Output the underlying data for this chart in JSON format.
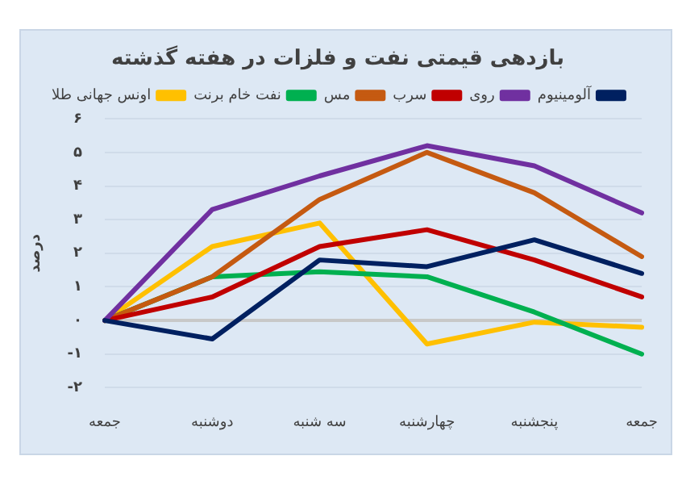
{
  "chart_data": {
    "type": "line",
    "title": "بازدهی قیمتی نفت و فلزات در هفته گذشته",
    "ylabel": "درصد",
    "categories": [
      "جمعه",
      "دوشنبه",
      "سه شنبه",
      "چهارشنبه",
      "پنجشنبه",
      "جمعه"
    ],
    "series": [
      {
        "name": "آلومینیوم",
        "color": "#002060",
        "values": [
          0,
          -0.55,
          1.8,
          1.6,
          2.4,
          1.4
        ]
      },
      {
        "name": "روی",
        "color": "#7030a0",
        "values": [
          0,
          3.3,
          4.3,
          5.2,
          4.6,
          3.2
        ]
      },
      {
        "name": "سرب",
        "color": "#c00000",
        "values": [
          0,
          0.7,
          2.2,
          2.7,
          1.8,
          0.7
        ]
      },
      {
        "name": "مس",
        "color": "#c55a11",
        "values": [
          0,
          1.3,
          3.6,
          5.0,
          3.8,
          1.9
        ]
      },
      {
        "name": "نفت خام برنت",
        "color": "#00b050",
        "values": [
          0,
          1.3,
          1.45,
          1.3,
          0.25,
          -1.0
        ]
      },
      {
        "name": "اونس جهانی طلا",
        "color": "#ffc000",
        "values": [
          0,
          2.2,
          2.9,
          -0.7,
          -0.05,
          -0.2
        ]
      }
    ],
    "ylim": [
      -2,
      6
    ],
    "yticks": [
      {
        "value": -2,
        "label": "-۲"
      },
      {
        "value": -1,
        "label": "-۱"
      },
      {
        "value": 0,
        "label": "۰"
      },
      {
        "value": 1,
        "label": "۱"
      },
      {
        "value": 2,
        "label": "۲"
      },
      {
        "value": 3,
        "label": "۳"
      },
      {
        "value": 4,
        "label": "۴"
      },
      {
        "value": 5,
        "label": "۵"
      },
      {
        "value": 6,
        "label": "۶"
      }
    ],
    "grid": "y",
    "legend": "top",
    "marker": "none",
    "line_style": "solid"
  }
}
